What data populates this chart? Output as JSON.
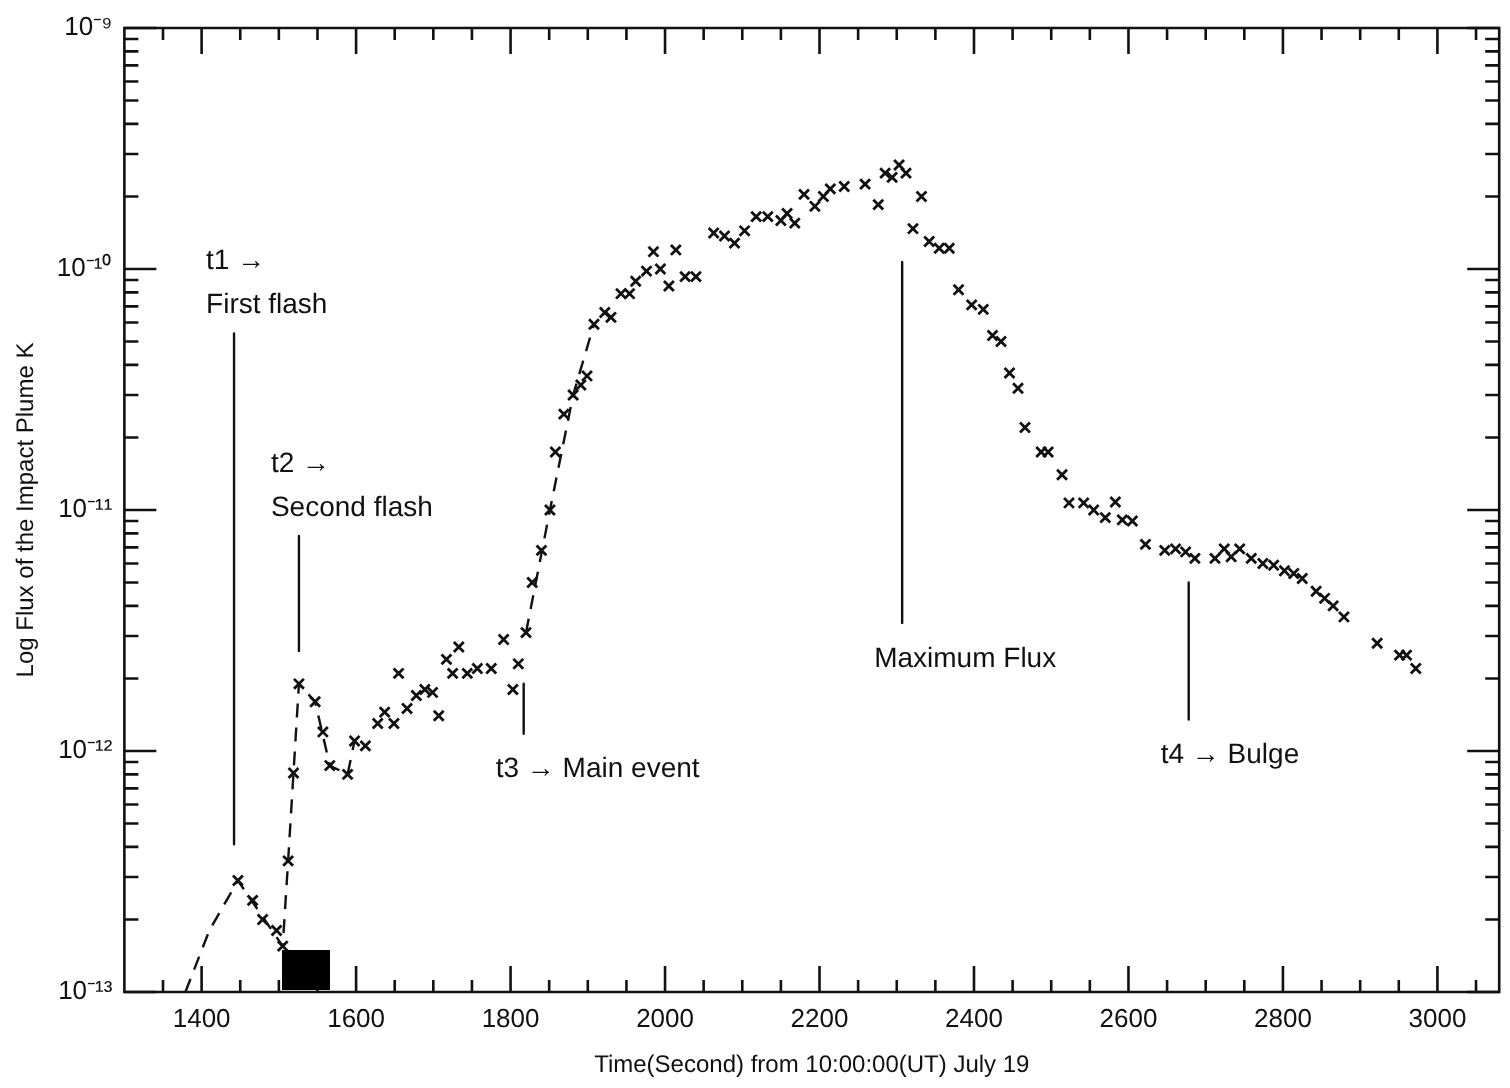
{
  "chart_data": {
    "type": "scatter",
    "xlabel": "Time(Second) from 10:00:00(UT) July 19",
    "ylabel": "Log Flux of the Impact Plume K",
    "log": "y",
    "grid": false,
    "legend": false,
    "xlim": [
      1300,
      3080
    ],
    "ylim": [
      1e-13,
      1e-09
    ],
    "xticks": [
      {
        "value": 1350,
        "label": null
      },
      1400,
      {
        "value": 1450,
        "label": null
      },
      {
        "value": 1500,
        "label": null
      },
      {
        "value": 1550,
        "label": null
      },
      1600,
      {
        "value": 1650,
        "label": null
      },
      {
        "value": 1700,
        "label": null
      },
      {
        "value": 1750,
        "label": null
      },
      1800,
      {
        "value": 1850,
        "label": null
      },
      {
        "value": 1900,
        "label": null
      },
      {
        "value": 1950,
        "label": null
      },
      2000,
      {
        "value": 2050,
        "label": null
      },
      {
        "value": 2100,
        "label": null
      },
      {
        "value": 2150,
        "label": null
      },
      2200,
      {
        "value": 2250,
        "label": null
      },
      {
        "value": 2300,
        "label": null
      },
      {
        "value": 2350,
        "label": null
      },
      2400,
      {
        "value": 2450,
        "label": null
      },
      {
        "value": 2500,
        "label": null
      },
      {
        "value": 2550,
        "label": null
      },
      2600,
      {
        "value": 2650,
        "label": null
      },
      {
        "value": 2700,
        "label": null
      },
      {
        "value": 2750,
        "label": null
      },
      2800,
      {
        "value": 2850,
        "label": null
      },
      {
        "value": 2900,
        "label": null
      },
      {
        "value": 2950,
        "label": null
      },
      3000,
      {
        "value": 3050,
        "label": null
      }
    ],
    "yticks": [
      {
        "value": 1e-13,
        "label": "10⁻¹³"
      },
      {
        "value": 2e-13,
        "label": null
      },
      {
        "value": 3e-13,
        "label": null
      },
      {
        "value": 4e-13,
        "label": null
      },
      {
        "value": 5e-13,
        "label": null
      },
      {
        "value": 6e-13,
        "label": null
      },
      {
        "value": 7e-13,
        "label": null
      },
      {
        "value": 8e-13,
        "label": null
      },
      {
        "value": 9e-13,
        "label": null
      },
      {
        "value": 1e-12,
        "label": "10⁻¹²"
      },
      {
        "value": 2e-12,
        "label": null
      },
      {
        "value": 3e-12,
        "label": null
      },
      {
        "value": 4e-12,
        "label": null
      },
      {
        "value": 5e-12,
        "label": null
      },
      {
        "value": 6e-12,
        "label": null
      },
      {
        "value": 7e-12,
        "label": null
      },
      {
        "value": 8e-12,
        "label": null
      },
      {
        "value": 9e-12,
        "label": null
      },
      {
        "value": 1e-11,
        "label": "10⁻¹¹"
      },
      {
        "value": 2e-11,
        "label": null
      },
      {
        "value": 3e-11,
        "label": null
      },
      {
        "value": 4e-11,
        "label": null
      },
      {
        "value": 5e-11,
        "label": null
      },
      {
        "value": 6e-11,
        "label": null
      },
      {
        "value": 7e-11,
        "label": null
      },
      {
        "value": 8e-11,
        "label": null
      },
      {
        "value": 9e-11,
        "label": null
      },
      {
        "value": 1e-10,
        "label": "10⁻¹⁰"
      },
      {
        "value": 2e-10,
        "label": null
      },
      {
        "value": 3e-10,
        "label": null
      },
      {
        "value": 4e-10,
        "label": null
      },
      {
        "value": 5e-10,
        "label": null
      },
      {
        "value": 6e-10,
        "label": null
      },
      {
        "value": 7e-10,
        "label": null
      },
      {
        "value": 8e-10,
        "label": null
      },
      {
        "value": 9e-10,
        "label": null
      },
      {
        "value": 1e-09,
        "label": "10⁻⁹"
      }
    ],
    "series": [
      {
        "type": "scatter",
        "marker": "cross",
        "color": "#111111",
        "x": [
          1447,
          1466,
          1479,
          1497,
          1505,
          1512,
          1519,
          1526,
          1547,
          1557,
          1566,
          1589,
          1598,
          1612,
          1628,
          1637,
          1649,
          1655,
          1666,
          1678,
          1689,
          1699,
          1707,
          1717,
          1725,
          1733,
          1744,
          1757,
          1775,
          1791,
          1803,
          1810,
          1820,
          1828,
          1840,
          1851,
          1858,
          1869,
          1881,
          1891,
          1899,
          1908,
          1922,
          1930,
          1943,
          1954,
          1962,
          1976,
          1985,
          1994,
          2005,
          2014,
          2026,
          2040,
          2063,
          2077,
          2090,
          2103,
          2118,
          2133,
          2150,
          2158,
          2168,
          2180,
          2194,
          2205,
          2214,
          2232,
          2259,
          2276,
          2285,
          2294,
          2303,
          2312,
          2321,
          2332,
          2342,
          2355,
          2368,
          2380,
          2397,
          2412,
          2424,
          2435,
          2446,
          2457,
          2466,
          2487,
          2496,
          2514,
          2523,
          2542,
          2555,
          2570,
          2583,
          2592,
          2605,
          2622,
          2647,
          2661,
          2674,
          2686,
          2712,
          2724,
          2733,
          2744,
          2759,
          2774,
          2788,
          2802,
          2814,
          2825,
          2843,
          2854,
          2865,
          2879,
          2922,
          2951,
          2960,
          2972
        ],
        "values": [
          2.9e-13,
          2.4e-13,
          2e-13,
          1.8e-13,
          1.55e-13,
          3.5e-13,
          8.1e-13,
          1.9e-12,
          1.6e-12,
          1.2e-12,
          8.7e-13,
          8e-13,
          1.1e-12,
          1.05e-12,
          1.3e-12,
          1.45e-12,
          1.3e-12,
          2.1e-12,
          1.5e-12,
          1.7e-12,
          1.8e-12,
          1.75e-12,
          1.4e-12,
          2.4e-12,
          2.1e-12,
          2.7e-12,
          2.1e-12,
          2.2e-12,
          2.2e-12,
          2.9e-12,
          1.8e-12,
          2.3e-12,
          3.1e-12,
          5e-12,
          6.8e-12,
          1e-11,
          1.74e-11,
          2.5e-11,
          3e-11,
          3.3e-11,
          3.6e-11,
          5.9e-11,
          6.6e-11,
          6.3e-11,
          7.9e-11,
          7.9e-11,
          8.9e-11,
          9.8e-11,
          1.18e-10,
          1e-10,
          8.5e-11,
          1.2e-10,
          9.3e-11,
          9.3e-11,
          1.41e-10,
          1.37e-10,
          1.28e-10,
          1.44e-10,
          1.65e-10,
          1.65e-10,
          1.59e-10,
          1.7e-10,
          1.55e-10,
          2.04e-10,
          1.82e-10,
          2e-10,
          2.15e-10,
          2.2e-10,
          2.25e-10,
          1.85e-10,
          2.5e-10,
          2.4e-10,
          2.7e-10,
          2.5e-10,
          1.47e-10,
          2e-10,
          1.3e-10,
          1.22e-10,
          1.22e-10,
          8.2e-11,
          7.1e-11,
          6.8e-11,
          5.3e-11,
          5e-11,
          3.7e-11,
          3.2e-11,
          2.2e-11,
          1.74e-11,
          1.74e-11,
          1.4e-11,
          1.07e-11,
          1.07e-11,
          1e-11,
          9.3e-12,
          1.08e-11,
          9.1e-12,
          9e-12,
          7.2e-12,
          6.8e-12,
          6.9e-12,
          6.7e-12,
          6.3e-12,
          6.3e-12,
          6.9e-12,
          6.4e-12,
          6.9e-12,
          6.3e-12,
          6e-12,
          5.9e-12,
          5.6e-12,
          5.45e-12,
          5.2e-12,
          4.6e-12,
          4.3e-12,
          4e-12,
          3.6e-12,
          2.8e-12,
          2.5e-12,
          2.5e-12,
          2.2e-12
        ]
      },
      {
        "type": "line",
        "marker": "none",
        "line_style": "dashed",
        "color": "#111111",
        "x": [
          1379,
          1410,
          1447,
          1505,
          1512,
          1526,
          1547,
          1566,
          1589,
          1598
        ],
        "values": [
          1e-13,
          1.8e-13,
          2.9e-13,
          1.55e-13,
          3.5e-13,
          1.9e-12,
          1.6e-12,
          8.7e-13,
          8e-13,
          1.1e-12
        ]
      },
      {
        "type": "line",
        "marker": "none",
        "line_style": "dashed",
        "color": "#111111",
        "x": [
          1820,
          1851,
          1881,
          1908
        ],
        "values": [
          3.1e-12,
          1e-11,
          3e-11,
          5.9e-11
        ]
      },
      {
        "type": "line",
        "marker": "none",
        "line_style": "solid",
        "color": "#111111",
        "x": [
          1442,
          1442
        ],
        "values": [
          5.4e-11,
          4.1e-13
        ]
      },
      {
        "type": "line",
        "marker": "none",
        "line_style": "solid",
        "color": "#111111",
        "x": [
          1526,
          1526
        ],
        "values": [
          7.8e-12,
          2.6e-12
        ]
      },
      {
        "type": "line",
        "marker": "none",
        "line_style": "solid",
        "color": "#111111",
        "x": [
          1817,
          1817
        ],
        "values": [
          1.9e-12,
          1.18e-12
        ]
      },
      {
        "type": "line",
        "marker": "none",
        "line_style": "solid",
        "color": "#111111",
        "x": [
          2307,
          2307
        ],
        "values": [
          1.07e-10,
          3.4e-12
        ]
      },
      {
        "type": "line",
        "marker": "none",
        "line_style": "solid",
        "color": "#111111",
        "x": [
          2678,
          2678
        ],
        "values": [
          5e-12,
          1.35e-12
        ]
      }
    ],
    "annotations": [
      {
        "text": "t1 →\nFirst flash",
        "x": 1442,
        "y": 5.4e-11
      },
      {
        "text": "t2 →\nSecond flash",
        "x": 1526,
        "y": 7.8e-12
      },
      {
        "text": "t3 → Main event",
        "x": 1817,
        "y": 1.18e-12
      },
      {
        "text": "Maximum Flux",
        "x": 2307,
        "y": 3.4e-12
      },
      {
        "text": "t4 → Bulge",
        "x": 2678,
        "y": 1.35e-12
      }
    ]
  }
}
